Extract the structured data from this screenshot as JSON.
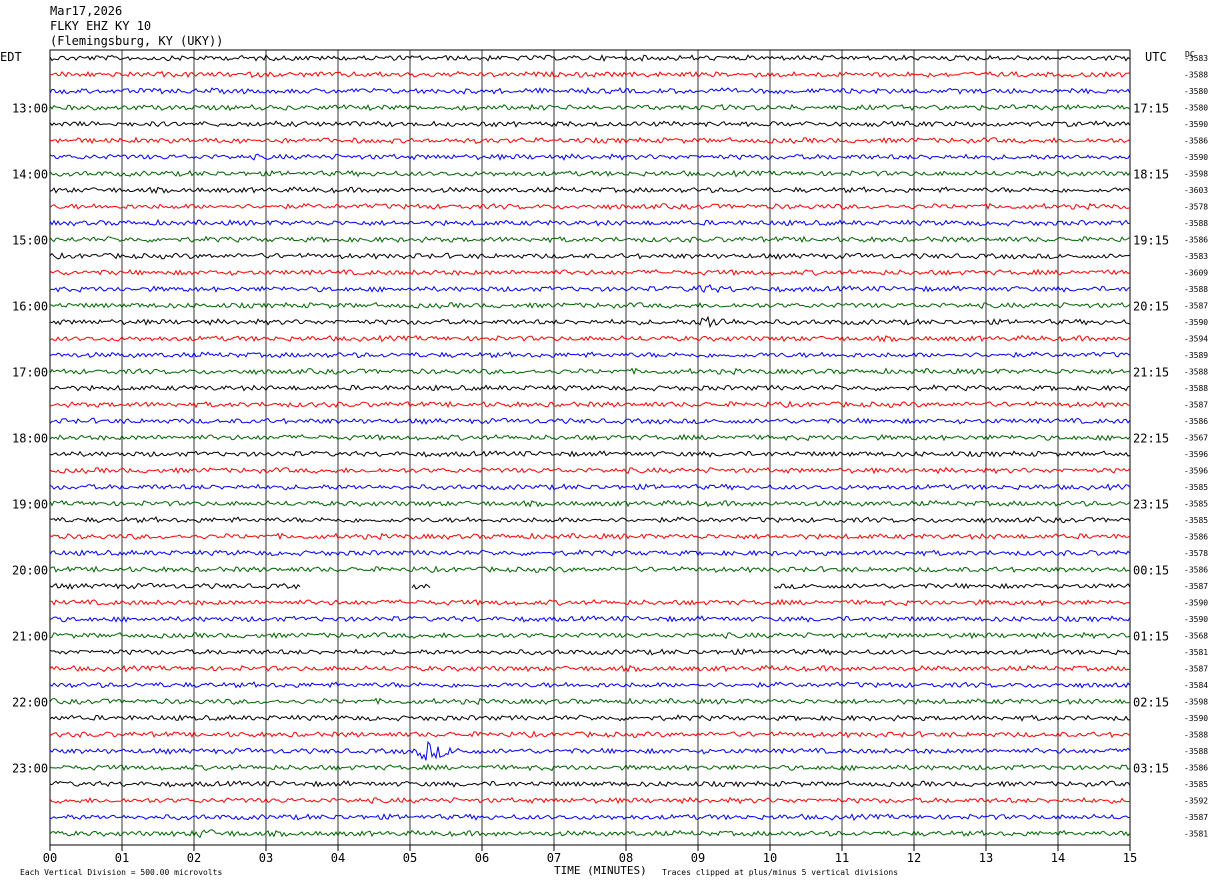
{
  "header": {
    "date": "Mar17,2026",
    "station": "FLKY EHZ KY 10",
    "location": "(Flemingsburg, KY (UKY))"
  },
  "chart_data": {
    "type": "line",
    "title": "",
    "xlabel": "TIME (MINUTES)",
    "ylabel": "",
    "left_zone_label": "EDT",
    "right_zone_label": "UTC",
    "dc_label": "DC",
    "x_ticks": [
      "00",
      "01",
      "02",
      "03",
      "04",
      "05",
      "06",
      "07",
      "08",
      "09",
      "10",
      "11",
      "12",
      "13",
      "14",
      "15"
    ],
    "xlim": [
      0,
      15
    ],
    "rows_per_hour": 4,
    "row_count": 48,
    "first_row_hour_edt": 12,
    "first_row_quarter": 1,
    "left_hour_labels": [
      "13:00",
      "14:00",
      "15:00",
      "16:00",
      "17:00",
      "18:00",
      "19:00",
      "20:00",
      "21:00",
      "22:00",
      "23:00"
    ],
    "right_hour_labels": [
      "17:15",
      "18:15",
      "19:15",
      "20:15",
      "21:15",
      "22:15",
      "23:15",
      "00:15",
      "01:15",
      "02:15",
      "03:15"
    ],
    "trace_colors": [
      "#000000",
      "#ff0000",
      "#0000ff",
      "#006400"
    ],
    "dc_offsets": [
      "-3583",
      "-3588",
      "-3580",
      "-3580",
      "-3590",
      "-3586",
      "-3590",
      "-3598",
      "-3603",
      "-3578",
      "-3588",
      "-3586",
      "-3583",
      "-3609",
      "-3588",
      "-3587",
      "-3590",
      "-3594",
      "-3589",
      "-3588",
      "-3588",
      "-3587",
      "-3586",
      "-3567",
      "-3596",
      "-3596",
      "-3585",
      "-3585",
      "-3585",
      "-3586",
      "-3578",
      "-3586",
      "-3587",
      "-3590",
      "-3590",
      "-3568",
      "-3581",
      "-3587",
      "-3584",
      "-3598",
      "-3590",
      "-3588",
      "-3588",
      "-3586",
      "-3585",
      "-3592",
      "-3587",
      "-3581"
    ],
    "events": [
      {
        "row": 16,
        "minute": 9.1,
        "amplitude": "large"
      },
      {
        "row": 14,
        "minute": 9.0,
        "amplitude": "medium"
      },
      {
        "row": 42,
        "minute": 5.2,
        "amplitude": "very large"
      },
      {
        "row": 47,
        "minute": 2.1,
        "amplitude": "medium"
      }
    ],
    "gaps": [
      {
        "row": 32,
        "from_minute": 3.5,
        "to_minute": 5.0
      },
      {
        "row": 32,
        "from_minute": 5.3,
        "to_minute": 10.05
      }
    ],
    "footer_left": "Each Vertical Division =  500.00 microvolts",
    "footer_right": "Traces clipped at plus/minus 5 vertical divisions"
  }
}
